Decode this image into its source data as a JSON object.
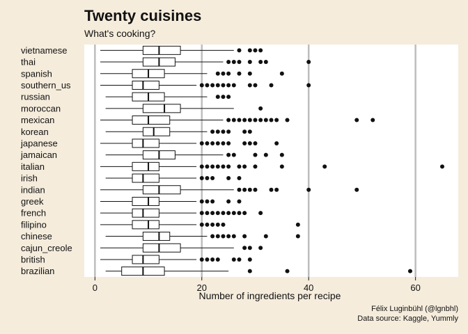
{
  "colors": {
    "background": "#f5ecdc",
    "panel": "#ffffff",
    "grid": "#bdbdbd",
    "ink": "#111111"
  },
  "caption": {
    "line1": "Félix Luginbühl (@lgnbhl)",
    "line2": "Data source: Kaggle, Yummly"
  },
  "chart_data": {
    "type": "boxplot",
    "title": "Twenty cuisines",
    "subtitle": "What's cooking?",
    "xlabel": "Number of ingredients per recipe",
    "ylabel": "",
    "xlim": [
      -2,
      68
    ],
    "xticks": [
      0,
      20,
      40,
      60
    ],
    "grid": "vertical major",
    "series": [
      {
        "cuisine": "vietnamese",
        "whisker_low": 1,
        "q1": 9,
        "median": 12,
        "q3": 16,
        "whisker_high": 26,
        "outliers": [
          27,
          29,
          30,
          31
        ]
      },
      {
        "cuisine": "thai",
        "whisker_low": 1,
        "q1": 9,
        "median": 12,
        "q3": 15,
        "whisker_high": 24,
        "outliers": [
          25,
          26,
          27,
          29,
          31,
          32,
          40
        ]
      },
      {
        "cuisine": "spanish",
        "whisker_low": 1,
        "q1": 7,
        "median": 10,
        "q3": 13,
        "whisker_high": 21,
        "outliers": [
          23,
          24,
          25,
          27,
          29,
          35
        ]
      },
      {
        "cuisine": "southern_us",
        "whisker_low": 1,
        "q1": 7,
        "median": 9,
        "q3": 12,
        "whisker_high": 19,
        "outliers": [
          20,
          21,
          22,
          23,
          24,
          25,
          26,
          29,
          30,
          33,
          40
        ]
      },
      {
        "cuisine": "russian",
        "whisker_low": 2,
        "q1": 7,
        "median": 10,
        "q3": 13,
        "whisker_high": 21,
        "outliers": [
          23,
          24,
          25
        ]
      },
      {
        "cuisine": "moroccan",
        "whisker_low": 2,
        "q1": 9,
        "median": 13,
        "q3": 16,
        "whisker_high": 26,
        "outliers": [
          31
        ]
      },
      {
        "cuisine": "mexican",
        "whisker_low": 1,
        "q1": 7,
        "median": 10,
        "q3": 14,
        "whisker_high": 24,
        "outliers": [
          25,
          26,
          27,
          28,
          29,
          30,
          31,
          32,
          33,
          34,
          36,
          49,
          52
        ]
      },
      {
        "cuisine": "korean",
        "whisker_low": 2,
        "q1": 9,
        "median": 11,
        "q3": 14,
        "whisker_high": 21,
        "outliers": [
          22,
          23,
          24,
          25,
          28,
          29
        ]
      },
      {
        "cuisine": "japanese",
        "whisker_low": 1,
        "q1": 7,
        "median": 9,
        "q3": 12,
        "whisker_high": 19,
        "outliers": [
          20,
          21,
          22,
          23,
          24,
          25,
          28,
          29,
          30,
          34
        ]
      },
      {
        "cuisine": "jamaican",
        "whisker_low": 2,
        "q1": 9,
        "median": 12,
        "q3": 15,
        "whisker_high": 24,
        "outliers": [
          25,
          26,
          30,
          32,
          35
        ]
      },
      {
        "cuisine": "italian",
        "whisker_low": 1,
        "q1": 7,
        "median": 10,
        "q3": 12,
        "whisker_high": 19,
        "outliers": [
          20,
          21,
          22,
          23,
          24,
          25,
          27,
          28,
          30,
          35,
          43,
          65
        ]
      },
      {
        "cuisine": "irish",
        "whisker_low": 2,
        "q1": 7,
        "median": 9,
        "q3": 12,
        "whisker_high": 19,
        "outliers": [
          20,
          21,
          22,
          25,
          27
        ]
      },
      {
        "cuisine": "indian",
        "whisker_low": 1,
        "q1": 9,
        "median": 12,
        "q3": 16,
        "whisker_high": 26,
        "outliers": [
          27,
          28,
          29,
          30,
          33,
          34,
          40,
          49
        ]
      },
      {
        "cuisine": "greek",
        "whisker_low": 1,
        "q1": 7,
        "median": 10,
        "q3": 12,
        "whisker_high": 19,
        "outliers": [
          20,
          21,
          22,
          25,
          27
        ]
      },
      {
        "cuisine": "french",
        "whisker_low": 1,
        "q1": 7,
        "median": 9,
        "q3": 12,
        "whisker_high": 19,
        "outliers": [
          20,
          21,
          22,
          23,
          24,
          25,
          26,
          27,
          28,
          31
        ]
      },
      {
        "cuisine": "filipino",
        "whisker_low": 1,
        "q1": 7,
        "median": 10,
        "q3": 12,
        "whisker_high": 19,
        "outliers": [
          20,
          21,
          22,
          23,
          24,
          38
        ]
      },
      {
        "cuisine": "chinese",
        "whisker_low": 2,
        "q1": 9,
        "median": 12,
        "q3": 14,
        "whisker_high": 21,
        "outliers": [
          22,
          23,
          24,
          25,
          26,
          28,
          32,
          38
        ]
      },
      {
        "cuisine": "cajun_creole",
        "whisker_low": 1,
        "q1": 9,
        "median": 12,
        "q3": 16,
        "whisker_high": 26,
        "outliers": [
          28,
          29,
          31
        ]
      },
      {
        "cuisine": "british",
        "whisker_low": 1,
        "q1": 7,
        "median": 9,
        "q3": 12,
        "whisker_high": 19,
        "outliers": [
          20,
          21,
          22,
          23,
          26,
          27,
          29
        ]
      },
      {
        "cuisine": "brazilian",
        "whisker_low": 2,
        "q1": 5,
        "median": 9,
        "q3": 13,
        "whisker_high": 25,
        "outliers": [
          29,
          36,
          59
        ]
      }
    ]
  }
}
